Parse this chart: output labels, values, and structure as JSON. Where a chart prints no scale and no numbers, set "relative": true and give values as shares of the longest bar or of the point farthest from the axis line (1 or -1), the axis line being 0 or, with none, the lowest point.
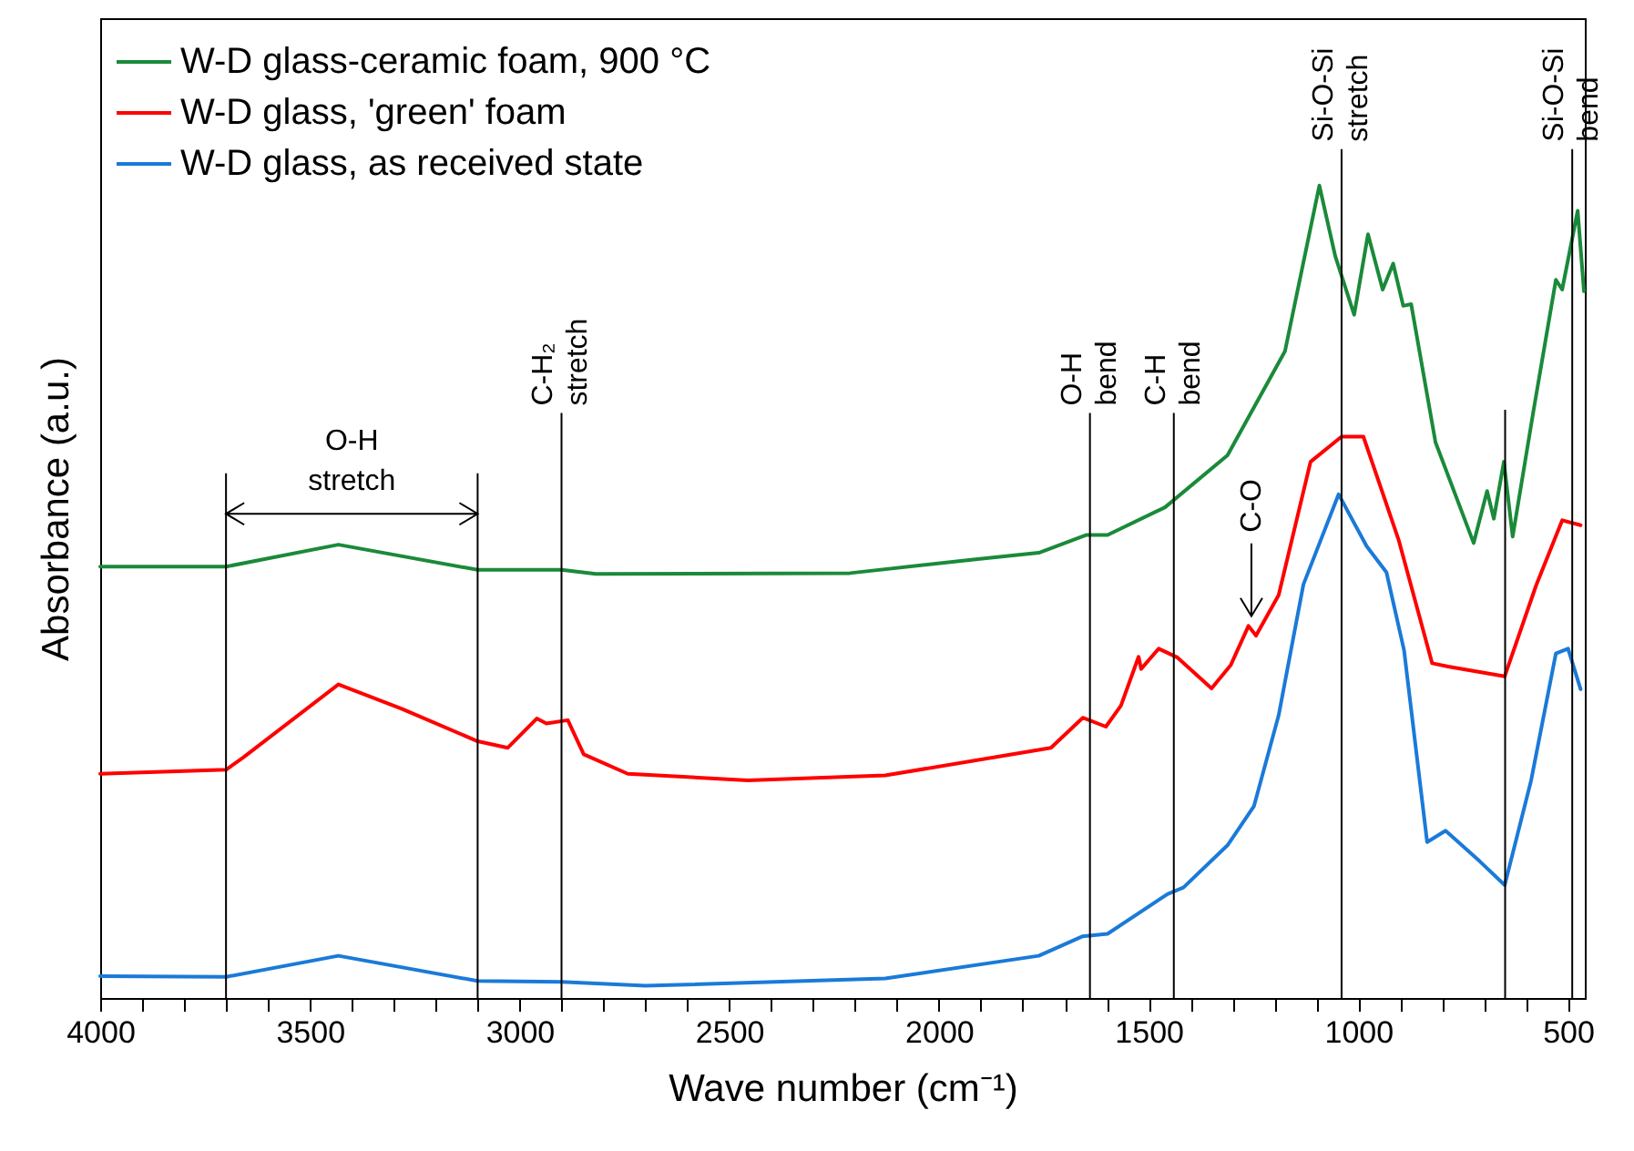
{
  "chart_data": {
    "type": "line",
    "relative": true,
    "xlabel": "Wave number (cm⁻¹)",
    "ylabel": "Absorbance (a.u.)",
    "legend": "top left",
    "xlim": [
      4000,
      460
    ],
    "xticks": [
      4000,
      {
        "value": 3900,
        "label": null
      },
      {
        "value": 3800,
        "label": null
      },
      {
        "value": 3700,
        "label": null
      },
      {
        "value": 3600,
        "label": null
      },
      3500,
      {
        "value": 3400,
        "label": null
      },
      {
        "value": 3300,
        "label": null
      },
      {
        "value": 3200,
        "label": null
      },
      {
        "value": 3100,
        "label": null
      },
      3000,
      {
        "value": 2900,
        "label": null
      },
      {
        "value": 2800,
        "label": null
      },
      {
        "value": 2700,
        "label": null
      },
      {
        "value": 2600,
        "label": null
      },
      2500,
      {
        "value": 2400,
        "label": null
      },
      {
        "value": 2300,
        "label": null
      },
      {
        "value": 2200,
        "label": null
      },
      {
        "value": 2100,
        "label": null
      },
      2000,
      {
        "value": 1900,
        "label": null
      },
      {
        "value": 1800,
        "label": null
      },
      {
        "value": 1700,
        "label": null
      },
      {
        "value": 1600,
        "label": null
      },
      1500,
      {
        "value": 1400,
        "label": null
      },
      {
        "value": 1300,
        "label": null
      },
      {
        "value": 1200,
        "label": null
      },
      {
        "value": 1100,
        "label": null
      },
      1000,
      {
        "value": 900,
        "label": null
      },
      {
        "value": 800,
        "label": null
      },
      {
        "value": 700,
        "label": null
      },
      {
        "value": 600,
        "label": null
      },
      500
    ],
    "series": [
      {
        "name": "W-D glass-ceramic foam, 900 °C",
        "color": "#1a8a3a",
        "x": [
          4000,
          3700,
          3432,
          3100,
          2900,
          2818,
          2212,
          1913,
          1762,
          1648,
          1598,
          1461,
          1312,
          1175,
          1093,
          1055,
          1010,
          977,
          942,
          917,
          893,
          874,
          816,
          725,
          693,
          677,
          653,
          632,
          582,
          529,
          514,
          477,
          462
        ],
        "values": [
          0.531,
          0.531,
          0.558,
          0.527,
          0.527,
          0.522,
          0.523,
          0.54,
          0.548,
          0.57,
          0.57,
          0.604,
          0.668,
          0.796,
          1.0,
          0.913,
          0.841,
          0.94,
          0.872,
          0.904,
          0.852,
          0.854,
          0.684,
          0.56,
          0.624,
          0.59,
          0.66,
          0.568,
          0.724,
          0.884,
          0.872,
          0.969,
          0.87
        ]
      },
      {
        "name": "W-D glass, 'green' foam",
        "color": "#ff0000",
        "x": [
          4000,
          3700,
          3659,
          3432,
          3281,
          3100,
          3028,
          2959,
          2936,
          2885,
          2847,
          2742,
          2456,
          2128,
          1733,
          1657,
          1602,
          1566,
          1524,
          1518,
          1476,
          1431,
          1350,
          1304,
          1262,
          1244,
          1190,
          1114,
          1040,
          988,
          904,
          824,
          786,
          651,
          576,
          514,
          470
        ],
        "values": [
          0.276,
          0.281,
          0.296,
          0.386,
          0.356,
          0.316,
          0.308,
          0.344,
          0.338,
          0.342,
          0.3,
          0.276,
          0.268,
          0.274,
          0.308,
          0.345,
          0.334,
          0.36,
          0.42,
          0.405,
          0.43,
          0.419,
          0.381,
          0.41,
          0.458,
          0.446,
          0.496,
          0.66,
          0.691,
          0.691,
          0.564,
          0.412,
          0.408,
          0.396,
          0.508,
          0.588,
          0.582
        ]
      },
      {
        "name": "W-D glass, as received state",
        "color": "#1a7ad8",
        "x": [
          4000,
          3700,
          3432,
          3100,
          2900,
          2700,
          2128,
          1762,
          1657,
          1598,
          1455,
          1417,
          1312,
          1249,
          1190,
          1131,
          1047,
          980,
          933,
          891,
          836,
          792,
          710,
          651,
          588,
          529,
          500,
          470
        ],
        "values": [
          0.027,
          0.026,
          0.052,
          0.021,
          0.02,
          0.015,
          0.024,
          0.052,
          0.076,
          0.079,
          0.128,
          0.136,
          0.188,
          0.236,
          0.348,
          0.509,
          0.62,
          0.556,
          0.524,
          0.428,
          0.192,
          0.206,
          0.168,
          0.139,
          0.268,
          0.424,
          0.43,
          0.38
        ]
      }
    ],
    "ref_lines": [
      {
        "axis": "x",
        "value": 3700
      },
      {
        "axis": "x",
        "value": 3100
      },
      {
        "axis": "x",
        "value": 2900,
        "label": "C-H₂ stretch"
      },
      {
        "axis": "x",
        "value": 1640,
        "label": "O-H bend"
      },
      {
        "axis": "x",
        "value": 1440,
        "label": "C-H bend"
      },
      {
        "axis": "x",
        "value": 1040,
        "label": "Si-O-Si stretch"
      },
      {
        "axis": "x",
        "value": 650
      },
      {
        "axis": "x",
        "value": 490,
        "label": "Si-O-Si bend"
      }
    ],
    "annotations": [
      "O-H stretch",
      {
        "text": "C-O",
        "x": 1255,
        "y": 0.47
      }
    ]
  }
}
